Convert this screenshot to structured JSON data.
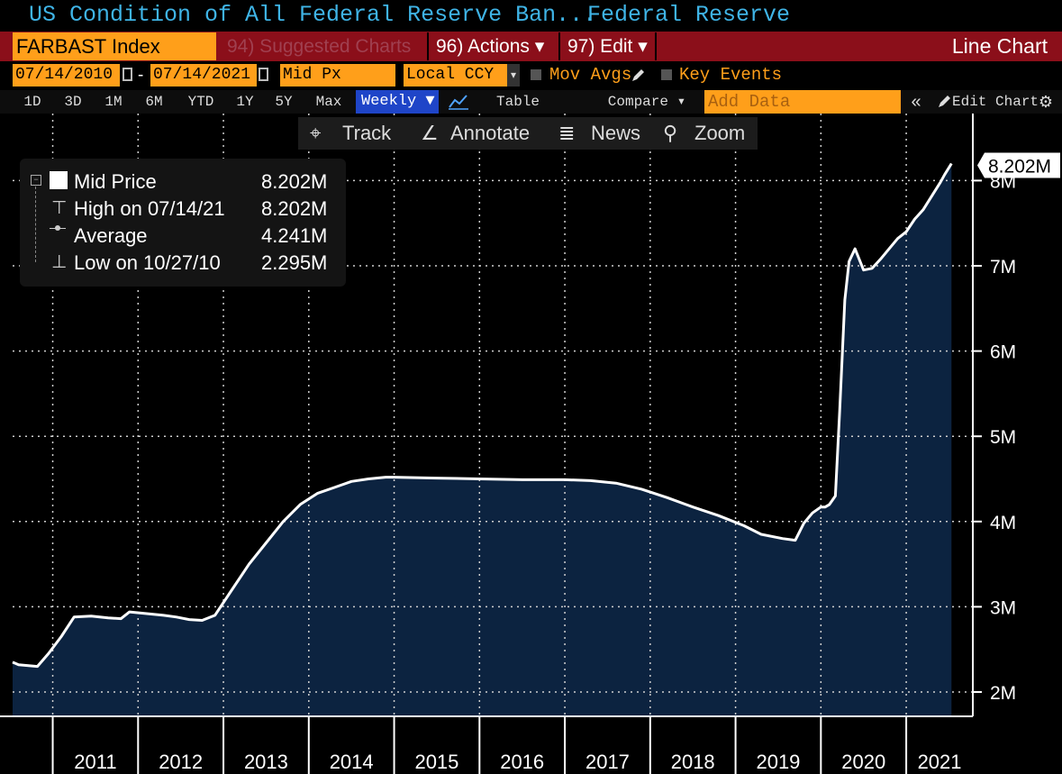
{
  "window": {
    "title": "US Condition of All Federal Reserve Ban...",
    "source": "Federal Reserve"
  },
  "command_bar": {
    "ticker": "FARBAST Index",
    "suggested": "94) Suggested Charts",
    "actions": "96) Actions ▾",
    "edit": "97) Edit ▾",
    "chart_type": "Line Chart"
  },
  "options_bar": {
    "start_date": "07/14/2010",
    "date_separator": "-",
    "end_date": "07/14/2021",
    "field": "Mid Px",
    "currency": "Local CCY",
    "mov_avgs": "Mov Avgs",
    "key_events": "Key Events"
  },
  "timeframe_bar": {
    "buttons": [
      "1D",
      "3D",
      "1M",
      "6M",
      "YTD",
      "1Y",
      "5Y",
      "Max"
    ],
    "frequency": "Weekly ▼",
    "table": "Table",
    "compare": "Compare ▾",
    "add_data_placeholder": "Add Data",
    "collapse": "«",
    "edit_chart": "Edit Chart"
  },
  "toolbar": {
    "track": "Track",
    "annotate": "Annotate",
    "news": "News",
    "zoom": "Zoom"
  },
  "legend": {
    "mid_price_label": "Mid Price",
    "mid_price_value": "8.202M",
    "high_label": "High on 07/14/21",
    "high_value": "8.202M",
    "average_label": "Average",
    "average_value": "4.241M",
    "low_label": "Low on 10/27/10",
    "low_value": "2.295M"
  },
  "last_price_tag": "8.202M",
  "colors": {
    "accent_orange": "#ff9f1a",
    "header_red": "#8b0f1a",
    "title_blue": "#3fb4e6",
    "area_fill": "#0c2340",
    "line": "#ffffff"
  },
  "chart_data": {
    "type": "area",
    "title": "US Condition of All Federal Reserve Ban...",
    "y_unit": "M",
    "ylim": [
      1.8,
      8.6
    ],
    "xlim": [
      2010.53,
      2021.78
    ],
    "y_ticks": [
      "2M",
      "3M",
      "4M",
      "5M",
      "6M",
      "7M",
      "8M"
    ],
    "x_ticks": [
      "2011",
      "2012",
      "2013",
      "2014",
      "2015",
      "2016",
      "2017",
      "2018",
      "2019",
      "2020",
      "2021"
    ],
    "grid": true,
    "series": [
      {
        "name": "Mid Price",
        "x": [
          2010.53,
          2010.6,
          2010.82,
          2010.95,
          2011.1,
          2011.25,
          2011.45,
          2011.65,
          2011.8,
          2011.9,
          2012.1,
          2012.3,
          2012.45,
          2012.6,
          2012.75,
          2012.9,
          2013.1,
          2013.3,
          2013.5,
          2013.7,
          2013.9,
          2014.1,
          2014.3,
          2014.5,
          2014.7,
          2014.9,
          2015.0,
          2015.5,
          2016.0,
          2016.5,
          2017.0,
          2017.3,
          2017.6,
          2017.9,
          2018.2,
          2018.5,
          2018.8,
          2019.1,
          2019.3,
          2019.55,
          2019.7,
          2019.8,
          2019.9,
          2020.0,
          2020.05,
          2020.1,
          2020.17,
          2020.22,
          2020.28,
          2020.33,
          2020.4,
          2020.5,
          2020.6,
          2020.7,
          2020.8,
          2020.9,
          2021.0,
          2021.1,
          2021.2,
          2021.3,
          2021.4,
          2021.45,
          2021.53
        ],
        "values": [
          2.35,
          2.32,
          2.3,
          2.45,
          2.65,
          2.88,
          2.89,
          2.87,
          2.86,
          2.94,
          2.92,
          2.9,
          2.88,
          2.85,
          2.84,
          2.9,
          3.2,
          3.5,
          3.75,
          4.0,
          4.2,
          4.33,
          4.4,
          4.47,
          4.5,
          4.52,
          4.52,
          4.51,
          4.5,
          4.49,
          4.49,
          4.48,
          4.45,
          4.38,
          4.28,
          4.17,
          4.07,
          3.95,
          3.85,
          3.8,
          3.78,
          3.98,
          4.1,
          4.17,
          4.17,
          4.2,
          4.3,
          5.3,
          6.6,
          7.05,
          7.2,
          6.95,
          6.97,
          7.08,
          7.2,
          7.32,
          7.4,
          7.55,
          7.66,
          7.82,
          7.98,
          8.07,
          8.2
        ]
      }
    ],
    "stats": {
      "last": 8.202,
      "high": 8.202,
      "average": 4.241,
      "low": 2.295
    }
  }
}
